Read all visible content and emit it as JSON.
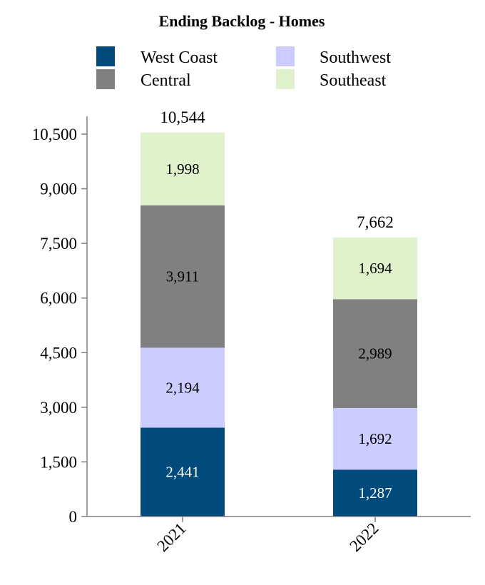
{
  "chart_data": {
    "type": "bar",
    "stacked": true,
    "title": "Ending Backlog - Homes",
    "xlabel": "",
    "ylabel": "",
    "categories": [
      "2021",
      "2022"
    ],
    "ylim": [
      0,
      10500
    ],
    "yticks": [
      "0",
      "1,500",
      "3,000",
      "4,500",
      "6,000",
      "7,500",
      "9,000",
      "10,500"
    ],
    "ytick_values": [
      0,
      1500,
      3000,
      4500,
      6000,
      7500,
      9000,
      10500
    ],
    "series": [
      {
        "name": "West Coast",
        "values": [
          2441,
          1287
        ],
        "labels": [
          "2,441",
          "1,287"
        ],
        "color": "#004b7c",
        "label_color": "#ffffff"
      },
      {
        "name": "Southwest",
        "values": [
          2194,
          1692
        ],
        "labels": [
          "2,194",
          "1,692"
        ],
        "color": "#ccccff",
        "label_color": "#000000"
      },
      {
        "name": "Central",
        "values": [
          3911,
          2989
        ],
        "labels": [
          "3,911",
          "2,989"
        ],
        "color": "#808080",
        "label_color": "#000000"
      },
      {
        "name": "Southeast",
        "values": [
          1998,
          1694
        ],
        "labels": [
          "1,998",
          "1,694"
        ],
        "color": "#e0f2cc",
        "label_color": "#000000"
      }
    ],
    "totals": [
      "10,544",
      "7,662"
    ],
    "legend_placement": "top",
    "grid": false
  }
}
